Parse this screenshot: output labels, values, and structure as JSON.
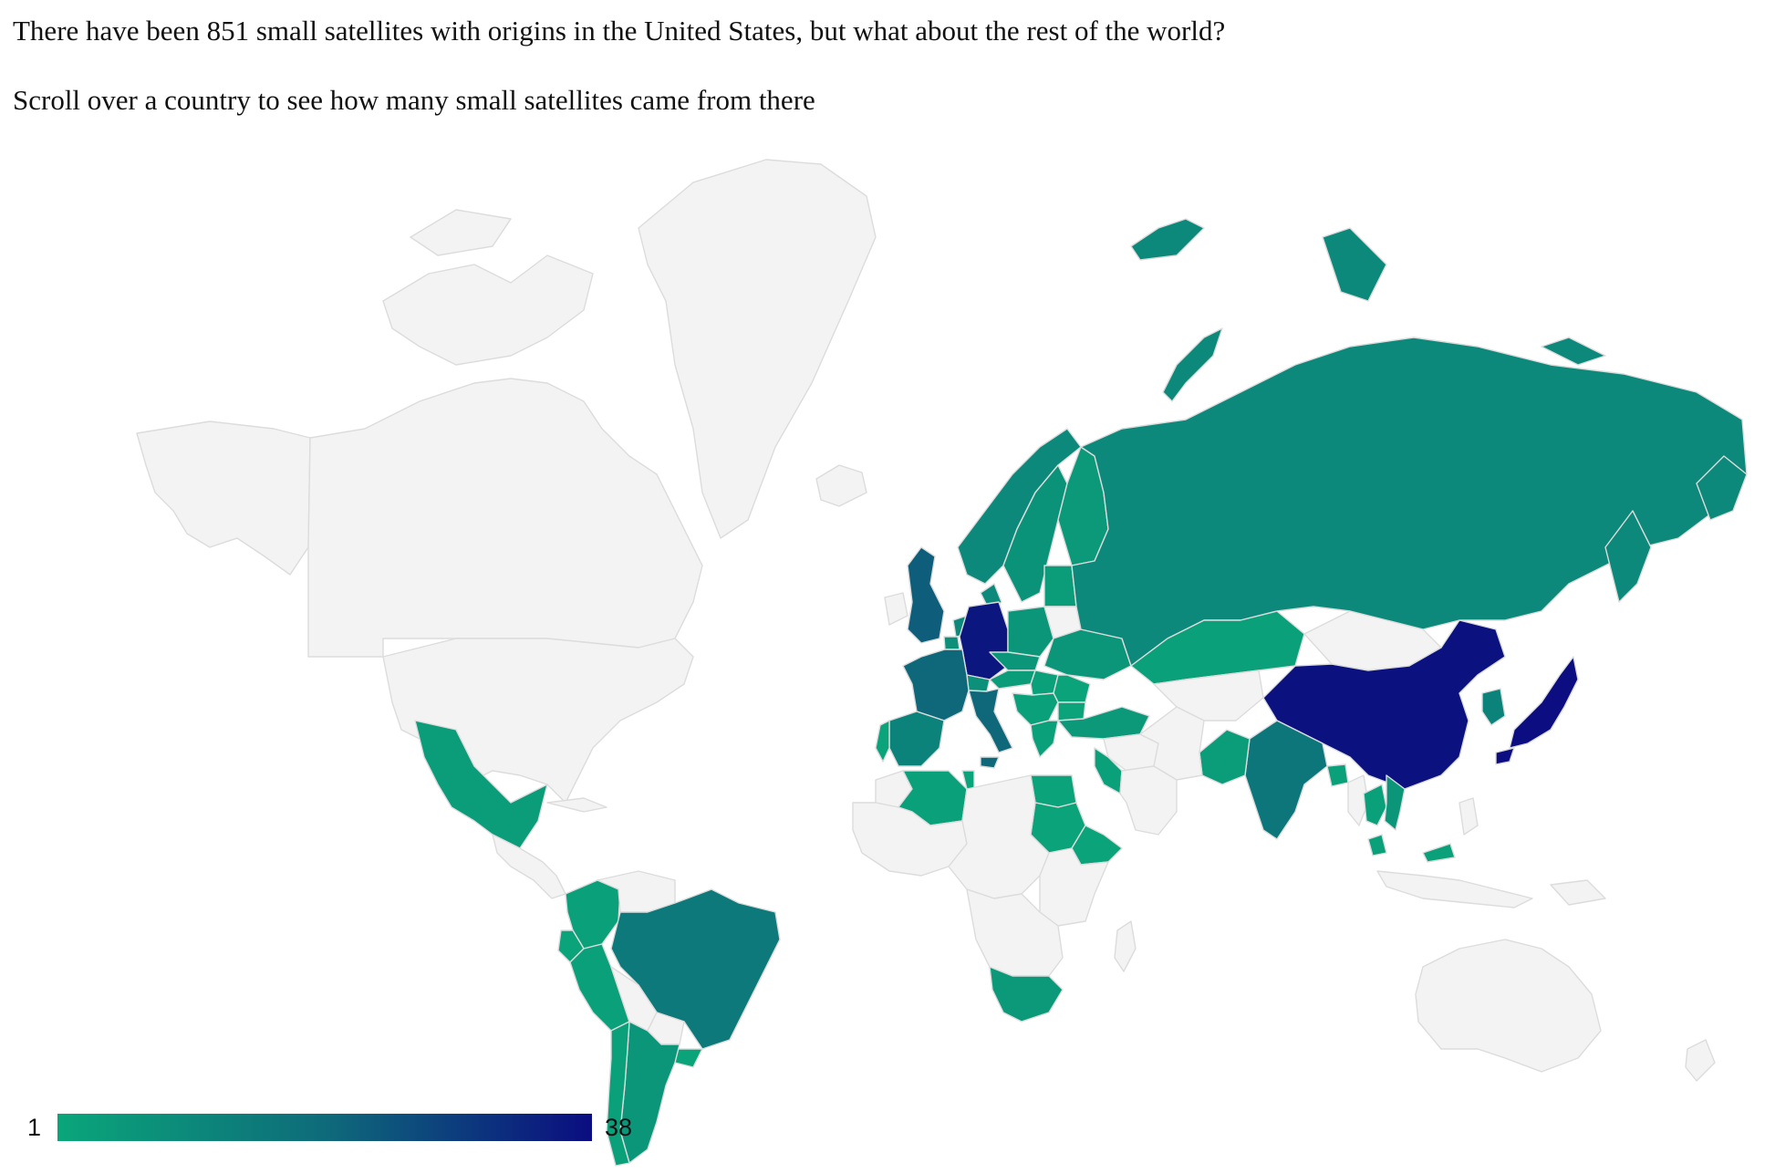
{
  "header": {
    "line1": "There have been 851 small satellites with origins in the United States, but what about the rest of the world?",
    "line2": "Scroll over a country to see how many small satellites came from there"
  },
  "legend": {
    "min_label": "1",
    "max_label": "38",
    "min_value": 1,
    "max_value": 38,
    "color_low": "#0aa67a",
    "color_mid": "#0e6b7a",
    "color_high": "#0b0d80"
  },
  "colors": {
    "no_data": "#f3f3f3",
    "border": "#dcdcdc"
  },
  "map": {
    "countries": [
      {
        "name": "Alaska (USA)",
        "value": null
      },
      {
        "name": "Canada",
        "value": null
      },
      {
        "name": "Greenland",
        "value": null
      },
      {
        "name": "Iceland",
        "value": null
      },
      {
        "name": "United States",
        "value": null
      },
      {
        "name": "Mexico",
        "value": 4
      },
      {
        "name": "Central America",
        "value": null
      },
      {
        "name": "Cuba",
        "value": null
      },
      {
        "name": "Colombia",
        "value": 3
      },
      {
        "name": "Venezuela",
        "value": null
      },
      {
        "name": "Ecuador",
        "value": 2
      },
      {
        "name": "Peru",
        "value": 3
      },
      {
        "name": "Brazil",
        "value": 15
      },
      {
        "name": "Bolivia",
        "value": null
      },
      {
        "name": "Paraguay",
        "value": null
      },
      {
        "name": "Uruguay",
        "value": 2
      },
      {
        "name": "Argentina",
        "value": 6
      },
      {
        "name": "Chile",
        "value": 3
      },
      {
        "name": "Norway",
        "value": 10
      },
      {
        "name": "Sweden",
        "value": 7
      },
      {
        "name": "Finland",
        "value": 5
      },
      {
        "name": "Denmark",
        "value": 10
      },
      {
        "name": "United Kingdom",
        "value": 22
      },
      {
        "name": "Ireland",
        "value": null
      },
      {
        "name": "Netherlands",
        "value": 10
      },
      {
        "name": "Belgium",
        "value": 8
      },
      {
        "name": "Germany",
        "value": 36
      },
      {
        "name": "Poland",
        "value": 6
      },
      {
        "name": "Baltics",
        "value": 4
      },
      {
        "name": "Belarus",
        "value": null
      },
      {
        "name": "Ukraine",
        "value": 6
      },
      {
        "name": "Czechia",
        "value": 6
      },
      {
        "name": "Austria",
        "value": 4
      },
      {
        "name": "Switzerland",
        "value": 8
      },
      {
        "name": "Hungary",
        "value": 3
      },
      {
        "name": "Romania",
        "value": 2
      },
      {
        "name": "Balkans",
        "value": 3
      },
      {
        "name": "Greece",
        "value": 3
      },
      {
        "name": "Bulgaria",
        "value": 2
      },
      {
        "name": "France",
        "value": 20
      },
      {
        "name": "Spain",
        "value": 12
      },
      {
        "name": "Portugal",
        "value": 2
      },
      {
        "name": "Italy",
        "value": 20
      },
      {
        "name": "Turkey",
        "value": 5
      },
      {
        "name": "Russia",
        "value": 10
      },
      {
        "name": "Kazakhstan",
        "value": 3
      },
      {
        "name": "Central Asia",
        "value": null
      },
      {
        "name": "Mongolia",
        "value": null
      },
      {
        "name": "China",
        "value": 37
      },
      {
        "name": "Korea",
        "value": 12
      },
      {
        "name": "Japan",
        "value": 38
      },
      {
        "name": "India",
        "value": 16
      },
      {
        "name": "Pakistan",
        "value": 4
      },
      {
        "name": "Iran",
        "value": null
      },
      {
        "name": "Saudi Arabia",
        "value": null
      },
      {
        "name": "Iraq & Syria",
        "value": null
      },
      {
        "name": "Israel & Jordan",
        "value": 3
      },
      {
        "name": "Egypt",
        "value": 2
      },
      {
        "name": "Sudan",
        "value": 2
      },
      {
        "name": "Ethiopia",
        "value": 2
      },
      {
        "name": "Algeria",
        "value": 3
      },
      {
        "name": "Tunisia",
        "value": 2
      },
      {
        "name": "Morocco",
        "value": null
      },
      {
        "name": "West Africa",
        "value": null
      },
      {
        "name": "Central Africa",
        "value": null
      },
      {
        "name": "East Africa",
        "value": null
      },
      {
        "name": "Southern Africa",
        "value": null
      },
      {
        "name": "South Africa",
        "value": 5
      },
      {
        "name": "Madagascar",
        "value": null
      },
      {
        "name": "Bangladesh",
        "value": 3
      },
      {
        "name": "Myanmar",
        "value": null
      },
      {
        "name": "Thailand",
        "value": 3
      },
      {
        "name": "Vietnam",
        "value": 6
      },
      {
        "name": "Malaysia",
        "value": 3
      },
      {
        "name": "Indonesia",
        "value": null
      },
      {
        "name": "Philippines",
        "value": null
      },
      {
        "name": "Australia",
        "value": null
      },
      {
        "name": "New Zealand",
        "value": null
      },
      {
        "name": "Papua New Guinea",
        "value": null
      }
    ]
  }
}
